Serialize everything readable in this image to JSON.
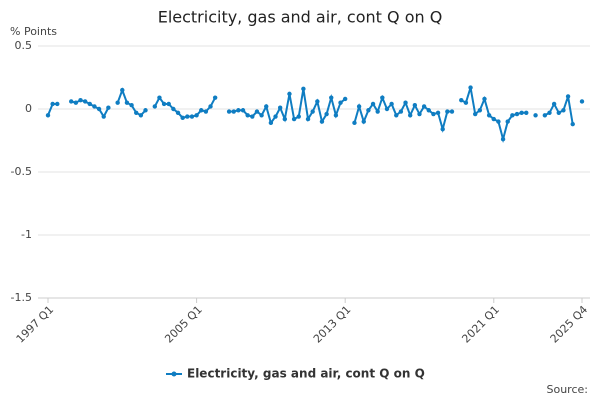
{
  "chart_data": {
    "type": "line",
    "title": "Electricity, gas and air, cont Q on Q",
    "y_label": "% Points",
    "source": "Source:",
    "categories": [
      "1997 Q1",
      null,
      null,
      null,
      null,
      null,
      null,
      null,
      null,
      null,
      null,
      null,
      null,
      null,
      null,
      null,
      null,
      null,
      null,
      null,
      null,
      null,
      null,
      null,
      null,
      null,
      null,
      null,
      null,
      null,
      null,
      null,
      "2005 Q1",
      null,
      null,
      null,
      null,
      null,
      null,
      null,
      null,
      null,
      null,
      null,
      null,
      null,
      null,
      null,
      null,
      null,
      null,
      null,
      null,
      null,
      null,
      null,
      null,
      null,
      null,
      null,
      null,
      null,
      null,
      null,
      "2013 Q1",
      null,
      null,
      null,
      null,
      null,
      null,
      null,
      null,
      null,
      null,
      null,
      null,
      null,
      null,
      null,
      null,
      null,
      null,
      null,
      null,
      null,
      null,
      null,
      null,
      null,
      null,
      null,
      null,
      null,
      null,
      null,
      "2021 Q1",
      null,
      null,
      null,
      null,
      null,
      null,
      null,
      null,
      null,
      null,
      null,
      null,
      null,
      null,
      null,
      null,
      null,
      null,
      "2025 Q4"
    ],
    "series": [
      {
        "name": "Electricity, gas and air, cont Q on Q",
        "color": "#0f7dc2",
        "values": [
          -0.05,
          0.04,
          0.04,
          null,
          null,
          0.06,
          0.05,
          0.07,
          0.06,
          0.04,
          0.02,
          0.0,
          -0.06,
          0.01,
          null,
          0.05,
          0.15,
          0.05,
          0.03,
          -0.03,
          -0.05,
          -0.01,
          null,
          0.02,
          0.09,
          0.04,
          0.04,
          0.0,
          -0.03,
          -0.07,
          -0.06,
          -0.06,
          -0.05,
          -0.01,
          -0.02,
          0.02,
          0.09,
          null,
          null,
          -0.02,
          -0.02,
          -0.01,
          -0.01,
          -0.05,
          -0.06,
          -0.02,
          -0.05,
          0.02,
          -0.11,
          -0.06,
          0.01,
          -0.08,
          0.12,
          -0.08,
          -0.06,
          0.16,
          -0.08,
          -0.02,
          0.06,
          -0.1,
          -0.04,
          0.09,
          -0.05,
          0.05,
          0.08,
          null,
          -0.11,
          0.02,
          -0.1,
          -0.01,
          0.04,
          -0.02,
          0.09,
          0.0,
          0.04,
          -0.05,
          -0.02,
          0.05,
          -0.05,
          0.03,
          -0.04,
          0.02,
          -0.01,
          -0.04,
          -0.03,
          -0.16,
          -0.02,
          -0.02,
          null,
          0.07,
          0.05,
          0.17,
          -0.04,
          -0.01,
          0.08,
          -0.05,
          -0.08,
          -0.1,
          -0.24,
          -0.1,
          -0.05,
          -0.04,
          -0.03,
          -0.03,
          null,
          -0.05,
          null,
          -0.05,
          -0.03,
          0.04,
          -0.03,
          -0.01,
          0.1,
          -0.12,
          null,
          0.06
        ]
      }
    ],
    "ylim": [
      -1.5,
      0.5
    ],
    "yticks": [
      0.5,
      0,
      -0.5,
      -1,
      -1.5
    ],
    "grid": true
  }
}
